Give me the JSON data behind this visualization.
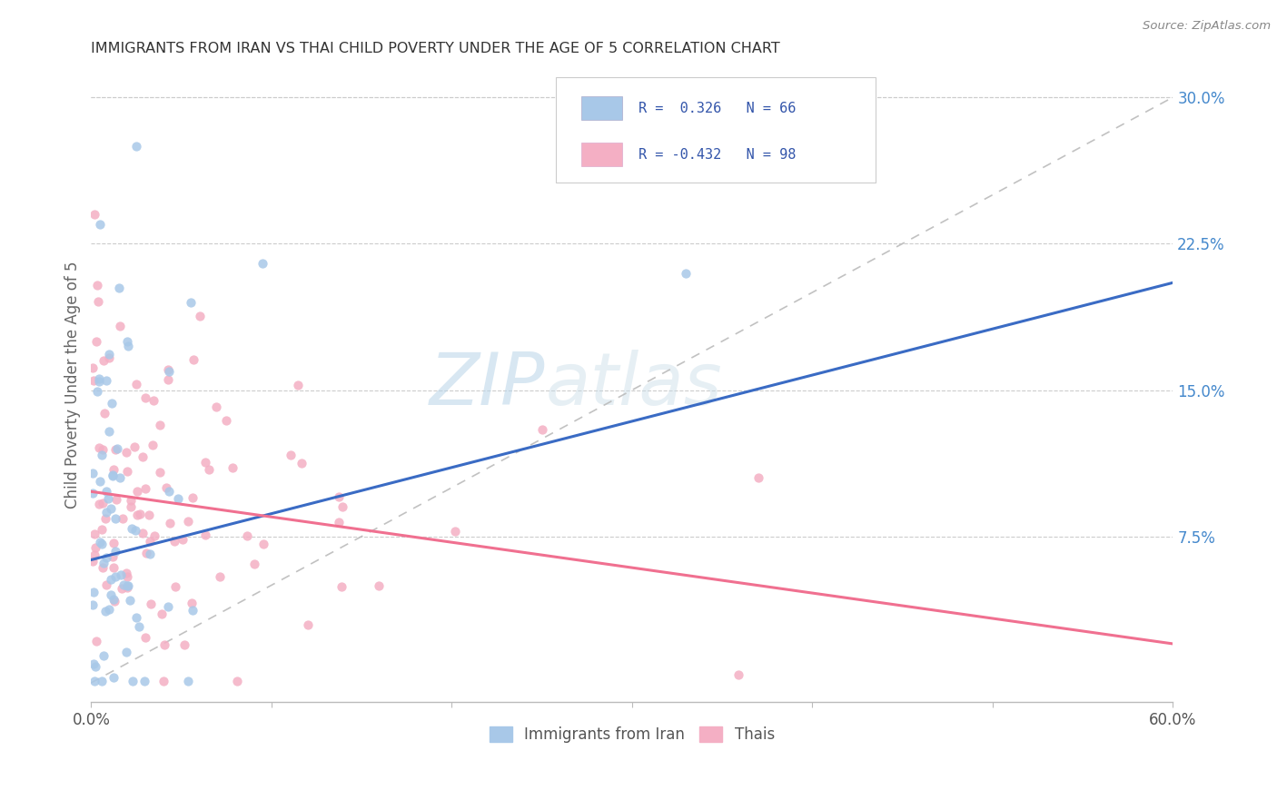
{
  "title": "IMMIGRANTS FROM IRAN VS THAI CHILD POVERTY UNDER THE AGE OF 5 CORRELATION CHART",
  "source": "Source: ZipAtlas.com",
  "ylabel": "Child Poverty Under the Age of 5",
  "xlim": [
    0.0,
    0.6
  ],
  "ylim": [
    -0.01,
    0.315
  ],
  "legend_iran": "Immigrants from Iran",
  "legend_thai": "Thais",
  "r_iran": "0.326",
  "n_iran": "66",
  "r_thai": "-0.432",
  "n_thai": "98",
  "iran_color": "#a8c8e8",
  "thai_color": "#f4afc4",
  "iran_line_color": "#3a6bc4",
  "thai_line_color": "#f07090",
  "diag_line_color": "#bbbbbb",
  "background_color": "#ffffff",
  "watermark": "ZIPatlas",
  "iran_line_x0": 0.0,
  "iran_line_y0": 0.063,
  "iran_line_x1": 0.6,
  "iran_line_y1": 0.205,
  "thai_line_x0": 0.0,
  "thai_line_y0": 0.098,
  "thai_line_x1": 0.6,
  "thai_line_y1": 0.02
}
